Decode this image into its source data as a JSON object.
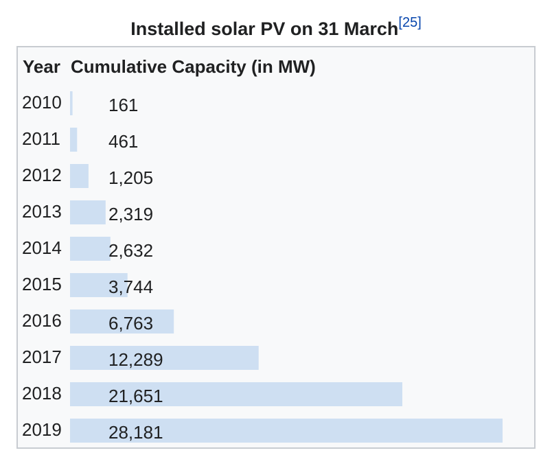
{
  "caption": {
    "title": "Installed solar PV on 31 March",
    "reference": "[25]"
  },
  "table": {
    "col_year": "Year",
    "col_capacity": "Cumulative Capacity (in MW)"
  },
  "colors": {
    "bar": "#cedff2",
    "border": "#c8ccd1",
    "reference_link": "#0645ad"
  },
  "chart_data": {
    "type": "bar",
    "orientation": "horizontal",
    "title": "Installed solar PV on 31 March",
    "xlabel": "Cumulative Capacity (in MW)",
    "ylabel": "Year",
    "categories": [
      "2010",
      "2011",
      "2012",
      "2013",
      "2014",
      "2015",
      "2016",
      "2017",
      "2018",
      "2019"
    ],
    "values": [
      161,
      461,
      1205,
      2319,
      2632,
      3744,
      6763,
      12289,
      21651,
      28181
    ],
    "value_labels": [
      "161",
      "461",
      "1,205",
      "2,319",
      "2,632",
      "3,744",
      "6,763",
      "12,289",
      "21,651",
      "28,181"
    ],
    "xlim": [
      0,
      28181
    ]
  }
}
